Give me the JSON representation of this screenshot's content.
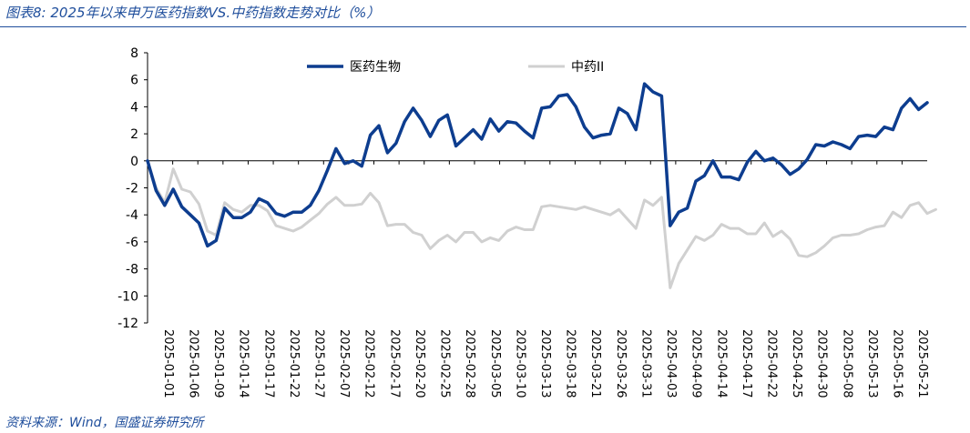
{
  "header": {
    "title": "图表8:  2025年以来申万医药指数VS.中药指数走势对比（%）"
  },
  "footer": {
    "source": "资料来源：Wind，国盛证券研究所"
  },
  "chart_data": {
    "type": "line",
    "title": "",
    "xlabel": "",
    "ylabel": "",
    "ylim": [
      -12,
      8
    ],
    "yticks": [
      8,
      6,
      4,
      2,
      0,
      -2,
      -4,
      -6,
      -8,
      -10,
      -12
    ],
    "grid": false,
    "legend_position": "top",
    "x_tick_labels": [
      "2025-01-01",
      "2025-01-06",
      "2025-01-09",
      "2025-01-14",
      "2025-01-17",
      "2025-01-22",
      "2025-01-27",
      "2025-02-07",
      "2025-02-12",
      "2025-02-17",
      "2025-02-20",
      "2025-02-25",
      "2025-02-28",
      "2025-03-05",
      "2025-03-10",
      "2025-03-13",
      "2025-03-18",
      "2025-03-21",
      "2025-03-26",
      "2025-03-31",
      "2025-04-03",
      "2025-04-09",
      "2025-04-14",
      "2025-04-17",
      "2025-04-22",
      "2025-04-25",
      "2025-04-30",
      "2025-05-08",
      "2025-05-13",
      "2025-05-16",
      "2025-05-21"
    ],
    "series": [
      {
        "name": "医药生物",
        "color": "#0d3d8f",
        "values": [
          0,
          -2.2,
          -3.3,
          -2.1,
          -3.4,
          -4.0,
          -4.6,
          -6.3,
          -5.9,
          -3.5,
          -4.2,
          -4.2,
          -3.8,
          -2.8,
          -3.1,
          -3.9,
          -4.1,
          -3.8,
          -3.8,
          -3.3,
          -2.2,
          -0.7,
          0.9,
          -0.2,
          0.0,
          -0.4,
          1.9,
          2.6,
          0.6,
          1.3,
          2.9,
          3.9,
          3.0,
          1.8,
          3.0,
          3.4,
          1.1,
          1.7,
          2.3,
          1.6,
          3.1,
          2.2,
          2.9,
          2.8,
          2.2,
          1.7,
          3.9,
          4.0,
          4.8,
          4.9,
          4.0,
          2.5,
          1.7,
          1.9,
          2.0,
          3.9,
          3.5,
          2.3,
          5.7,
          5.1,
          4.8,
          -4.8,
          -3.8,
          -3.5,
          -1.5,
          -1.1,
          0.0,
          -1.2,
          -1.2,
          -1.4,
          -0.1,
          0.7,
          0.0,
          0.2,
          -0.3,
          -1.0,
          -0.6,
          0.1,
          1.2,
          1.1,
          1.4,
          1.2,
          0.9,
          1.8,
          1.9,
          1.8,
          2.5,
          2.3,
          3.9,
          4.6,
          3.8,
          4.3
        ]
      },
      {
        "name": "中药II",
        "color": "#d0d0d0",
        "values": [
          0,
          -2.0,
          -3.1,
          -0.6,
          -2.1,
          -2.3,
          -3.2,
          -5.2,
          -5.5,
          -3.1,
          -3.6,
          -3.8,
          -3.3,
          -3.3,
          -3.7,
          -4.8,
          -5.0,
          -5.2,
          -4.9,
          -4.4,
          -3.9,
          -3.2,
          -2.7,
          -3.3,
          -3.3,
          -3.2,
          -2.4,
          -3.1,
          -4.8,
          -4.7,
          -4.7,
          -5.3,
          -5.5,
          -6.5,
          -5.9,
          -5.5,
          -6.0,
          -5.3,
          -5.3,
          -6.0,
          -5.7,
          -5.9,
          -5.2,
          -4.9,
          -5.1,
          -5.1,
          -3.4,
          -3.3,
          -3.4,
          -3.5,
          -3.6,
          -3.4,
          -3.6,
          -3.8,
          -4.0,
          -3.6,
          -4.3,
          -5.0,
          -2.9,
          -3.3,
          -2.7,
          -9.4,
          -7.6,
          -6.6,
          -5.6,
          -5.9,
          -5.5,
          -4.7,
          -5.0,
          -5.0,
          -5.4,
          -5.4,
          -4.6,
          -5.6,
          -5.2,
          -5.8,
          -7.0,
          -7.1,
          -6.8,
          -6.3,
          -5.7,
          -5.5,
          -5.5,
          -5.4,
          -5.1,
          -4.9,
          -4.8,
          -3.8,
          -4.2,
          -3.3,
          -3.1,
          -3.9,
          -3.6
        ]
      }
    ]
  }
}
